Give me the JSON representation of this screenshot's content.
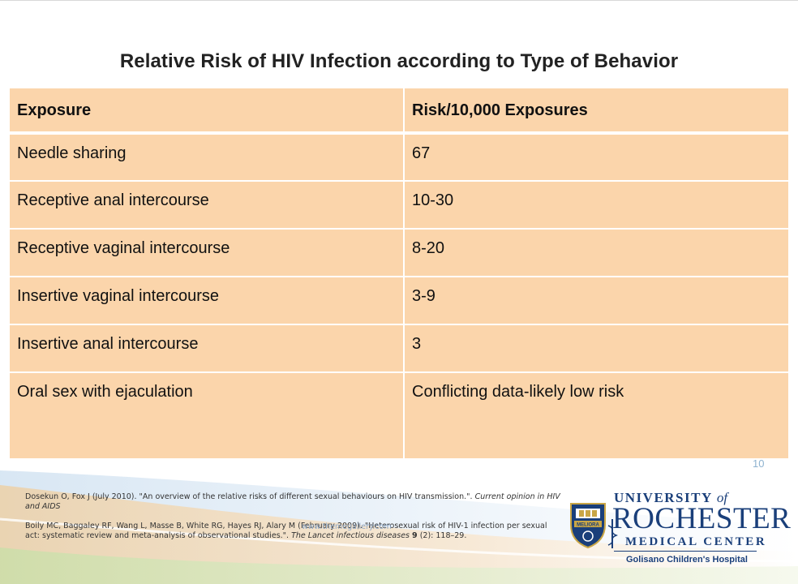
{
  "slide": {
    "title": "Relative Risk of HIV Infection according to Type of Behavior",
    "page_number": "10"
  },
  "table": {
    "headers": [
      "Exposure",
      "Risk/10,000 Exposures"
    ],
    "rows": [
      [
        "Needle sharing",
        "67"
      ],
      [
        "Receptive anal intercourse",
        "10-30"
      ],
      [
        "Receptive vaginal intercourse",
        "8-20"
      ],
      [
        "Insertive vaginal intercourse",
        "3-9"
      ],
      [
        "Insertive anal intercourse",
        "3"
      ],
      [
        "Oral sex with ejaculation",
        "Conflicting data-likely low risk"
      ]
    ]
  },
  "references": {
    "ref1_main": "Dosekun O, Fox J (July 2010). \"An overview of the relative risks of different sexual behaviours on HIV transmission.\".",
    "ref1_journal": "Current opinion in HIV and AIDS",
    "ref2_main": "Boily MC, Baggaley RF, Wang L, Masse B, White RG, Hayes RJ, Alary M (February 2009). \"Heterosexual risk of HIV-1 infection per sexual act: systematic review and meta-analysis of observational studies.\".",
    "ref2_journal": "The Lancet infectious diseases",
    "ref2_volume": "9",
    "ref2_pages": "(2): 118–29."
  },
  "ghost_text": "www.themegallery.com",
  "logo": {
    "line1": "UNIVERSITY",
    "line1_of": "of",
    "line2": "ROCHESTER",
    "line3": "MEDICAL CENTER",
    "line4": "Golisano Children's Hospital",
    "seal_text": "MELIORA"
  },
  "colors": {
    "table_fill": "#fbd5ab",
    "logo_blue": "#1a3f7a",
    "page_number": "#8fb3d0"
  }
}
